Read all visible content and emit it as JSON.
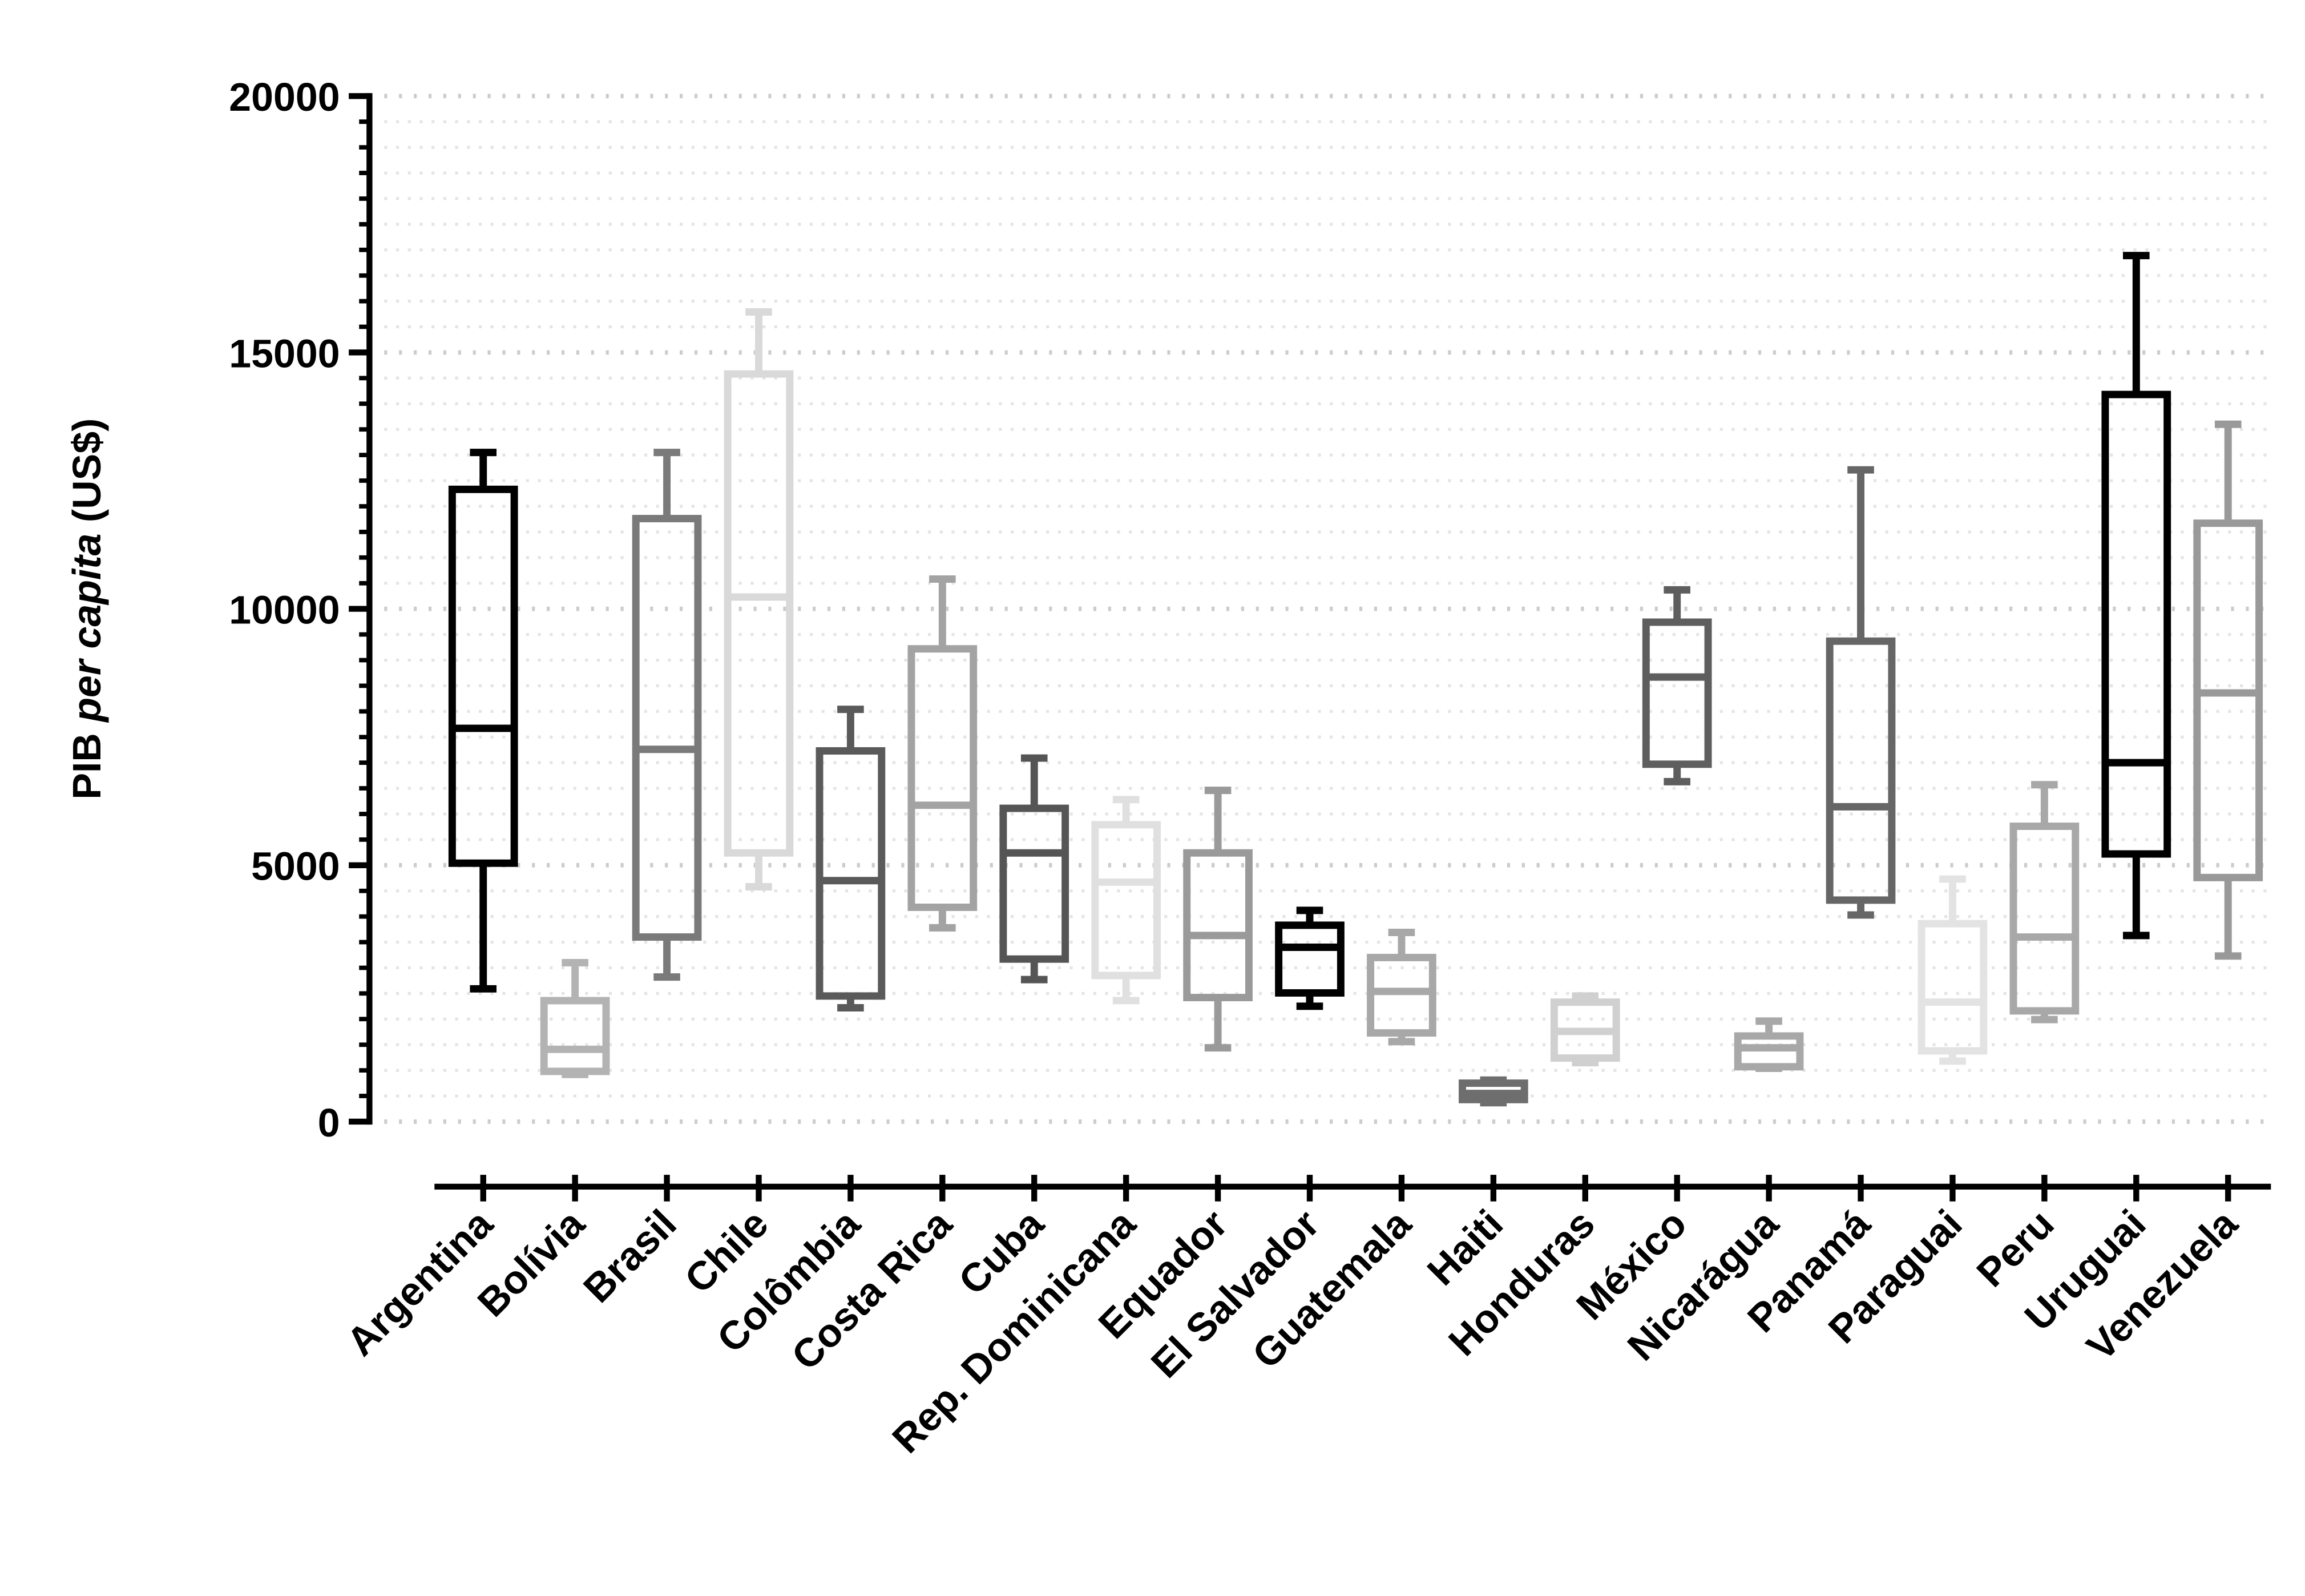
{
  "chart_data": {
    "type": "box",
    "y_label_parts": [
      "PIB",
      "per capita",
      "(US$)"
    ],
    "categories": [
      "Argentina",
      "Bolívia",
      "Brasil",
      "Chile",
      "Colômbia",
      "Costa Rica",
      "Cuba",
      "Rep. Dominicana",
      "Equador",
      "El Salvador",
      "Guatemala",
      "Haiti",
      "Honduras",
      "México",
      "Nicarágua",
      "Panamá",
      "Paraguai",
      "Peru",
      "Uruguai",
      "Venezuela"
    ],
    "min": [
      2590,
      920,
      2820,
      4580,
      2220,
      3780,
      2770,
      2360,
      1440,
      2250,
      1560,
      370,
      1150,
      6630,
      1040,
      4030,
      1180,
      1990,
      3630,
      3230
    ],
    "q1": [
      5040,
      980,
      3600,
      5240,
      2450,
      4180,
      3170,
      2850,
      2420,
      2510,
      1730,
      430,
      1240,
      6970,
      1070,
      4320,
      1380,
      2160,
      5220,
      4760
    ],
    "median": [
      7670,
      1410,
      7260,
      10230,
      4700,
      6170,
      5240,
      4670,
      3630,
      3400,
      2540,
      550,
      1760,
      8670,
      1440,
      6140,
      2330,
      3600,
      7000,
      8360
    ],
    "q3": [
      12330,
      2360,
      11760,
      14580,
      7230,
      9220,
      6110,
      5790,
      5240,
      3830,
      3200,
      750,
      2330,
      9740,
      1670,
      9370,
      3860,
      5760,
      14180,
      11670
    ],
    "max": [
      13050,
      3100,
      13050,
      15790,
      8040,
      10580,
      7090,
      6280,
      6460,
      4120,
      3690,
      810,
      2450,
      10370,
      1960,
      12710,
      4730,
      6570,
      16890,
      13600
    ],
    "colors": [
      "#000000",
      "#b3b3b3",
      "#7a7a7a",
      "#d9d9d9",
      "#5a5a5a",
      "#a3a3a3",
      "#555555",
      "#e0e0e0",
      "#9a9a9a",
      "#000000",
      "#a8a8a8",
      "#6e6e6e",
      "#d0d0d0",
      "#5e5e5e",
      "#a8a8a8",
      "#666666",
      "#e3e3e3",
      "#a8a8a8",
      "#000000",
      "#999999"
    ],
    "ylim": [
      0,
      20000
    ],
    "yticks": [
      0,
      5000,
      10000,
      15000,
      20000
    ],
    "minor_yticks": [
      500,
      1000,
      1500,
      2000,
      2500,
      3000,
      3500,
      4000,
      4500,
      5500,
      6000,
      6500,
      7000,
      7500,
      8000,
      8500,
      9000,
      9500,
      10500,
      11000,
      11500,
      12000,
      12500,
      13000,
      13500,
      14000,
      14500,
      15500,
      16000,
      16500,
      17000,
      17500,
      18000,
      18500,
      19000,
      19500
    ],
    "grid": true
  }
}
